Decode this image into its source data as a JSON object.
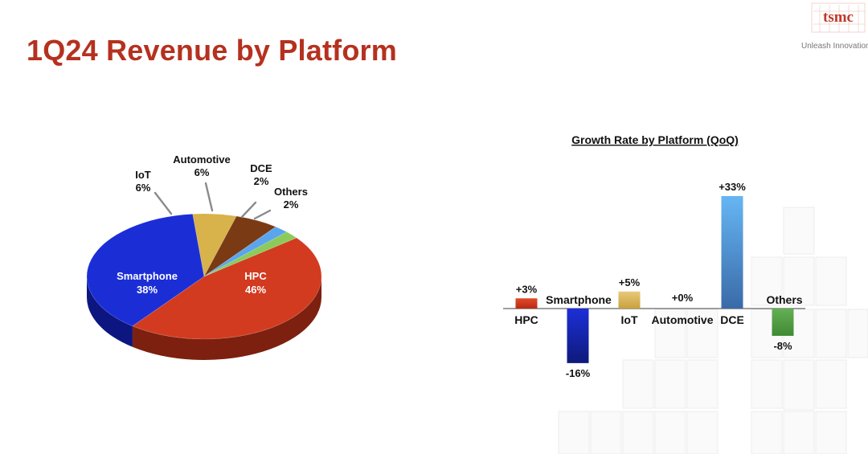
{
  "page": {
    "title": "1Q24 Revenue by Platform",
    "logo_text": "tsmc",
    "tagline": "Unleash Innovation"
  },
  "colors": {
    "title": "#b5311f",
    "hpc": "#d23b20",
    "smartphone": "#1b2ed6",
    "iot": "#d8b24a",
    "automotive": "#7a3a14",
    "dce": "#5aa6ee",
    "others": "#8ccb5a"
  },
  "chart_data": [
    {
      "type": "pie",
      "title": "",
      "slices": [
        {
          "name": "HPC",
          "label": "HPC",
          "pct_label": "46%",
          "value": 46,
          "color": "#d23b20",
          "side": "#7d2010"
        },
        {
          "name": "Smartphone",
          "label": "Smartphone",
          "pct_label": "38%",
          "value": 38,
          "color": "#1b2ed6",
          "side": "#0d1680"
        },
        {
          "name": "IoT",
          "label": "IoT",
          "pct_label": "6%",
          "value": 6,
          "color": "#d8b24a",
          "side": "#8a6a1c"
        },
        {
          "name": "Automotive",
          "label": "Automotive",
          "pct_label": "6%",
          "value": 6,
          "color": "#7a3a14",
          "side": "#4a200a"
        },
        {
          "name": "DCE",
          "label": "DCE",
          "pct_label": "2%",
          "value": 2,
          "color": "#5aa6ee",
          "side": "#2e6aa8"
        },
        {
          "name": "Others",
          "label": "Others",
          "pct_label": "2%",
          "value": 2,
          "color": "#8ccb5a",
          "side": "#4f8a2a"
        }
      ]
    },
    {
      "type": "bar",
      "title": "Growth Rate by Platform (QoQ)",
      "categories": [
        "HPC",
        "Smartphone",
        "IoT",
        "Automotive",
        "DCE",
        "Others"
      ],
      "values": [
        3,
        -16,
        5,
        0,
        33,
        -8
      ],
      "value_labels": [
        "+3%",
        "-16%",
        "+5%",
        "+0%",
        "+33%",
        "-8%"
      ],
      "colors": [
        "#d23b20",
        "#1b2ed6",
        "#d8b24a",
        "#7a3a14",
        "#5aa6ee",
        "#5aa84a"
      ],
      "ylim": [
        -16,
        33
      ]
    }
  ]
}
